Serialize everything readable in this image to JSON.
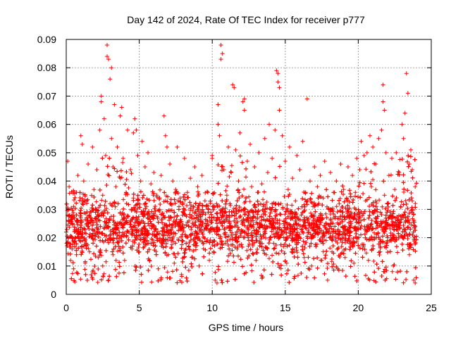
{
  "chart_data": {
    "type": "scatter",
    "title": "Day 142 of 2024, Rate Of TEC Index for receiver p777",
    "xlabel": "GPS time / hours",
    "ylabel": "ROTI / TECUs",
    "xlim": [
      0,
      25
    ],
    "ylim": [
      0,
      0.09
    ],
    "x_ticks": [
      0,
      5,
      10,
      15,
      20,
      25
    ],
    "x_tick_labels": [
      "0",
      "5",
      "10",
      "15",
      "20",
      "25"
    ],
    "y_ticks": [
      0,
      0.01,
      0.02,
      0.03,
      0.04,
      0.05,
      0.06,
      0.07,
      0.08,
      0.09
    ],
    "y_tick_labels": [
      "0",
      "0.01",
      "0.02",
      "0.03",
      "0.04",
      "0.05",
      "0.06",
      "0.07",
      "0.08",
      "0.09"
    ],
    "grid": true,
    "marker": "+",
    "series": [
      {
        "name": "ROTI",
        "color": "#ff0000",
        "points": [
          [
            0.0,
            0.022
          ],
          [
            0.1,
            0.028
          ],
          [
            0.1,
            0.047
          ],
          [
            0.2,
            0.018
          ],
          [
            0.2,
            0.038
          ],
          [
            0.3,
            0.012
          ],
          [
            0.3,
            0.025
          ],
          [
            0.4,
            0.016
          ],
          [
            0.5,
            0.031
          ],
          [
            0.5,
            0.009
          ],
          [
            0.6,
            0.02
          ],
          [
            0.7,
            0.036
          ],
          [
            0.7,
            0.014
          ],
          [
            0.8,
            0.042
          ],
          [
            0.9,
            0.019
          ],
          [
            1.0,
            0.056
          ],
          [
            1.0,
            0.027
          ],
          [
            1.1,
            0.053
          ],
          [
            1.2,
            0.017
          ],
          [
            1.2,
            0.04
          ],
          [
            1.3,
            0.011
          ],
          [
            1.4,
            0.033
          ],
          [
            1.5,
            0.024
          ],
          [
            1.5,
            0.046
          ],
          [
            1.6,
            0.015
          ],
          [
            1.7,
            0.029
          ],
          [
            1.8,
            0.052
          ],
          [
            1.8,
            0.008
          ],
          [
            1.9,
            0.037
          ],
          [
            2.0,
            0.021
          ],
          [
            2.1,
            0.044
          ],
          [
            2.2,
            0.013
          ],
          [
            2.3,
            0.058
          ],
          [
            2.3,
            0.026
          ],
          [
            2.4,
            0.07
          ],
          [
            2.4,
            0.068
          ],
          [
            2.5,
            0.035
          ],
          [
            2.5,
            0.01
          ],
          [
            2.6,
            0.062
          ],
          [
            2.7,
            0.049
          ],
          [
            2.7,
            0.019
          ],
          [
            2.8,
            0.084
          ],
          [
            2.8,
            0.088
          ],
          [
            2.9,
            0.083
          ],
          [
            2.9,
            0.005
          ],
          [
            3.0,
            0.076
          ],
          [
            3.0,
            0.032
          ],
          [
            3.1,
            0.08
          ],
          [
            3.1,
            0.055
          ],
          [
            3.2,
            0.045
          ],
          [
            3.2,
            0.014
          ],
          [
            3.3,
            0.067
          ],
          [
            3.4,
            0.038
          ],
          [
            3.4,
            0.023
          ],
          [
            3.5,
            0.052
          ],
          [
            3.6,
            0.017
          ],
          [
            3.7,
            0.063
          ],
          [
            3.7,
            0.041
          ],
          [
            3.8,
            0.066
          ],
          [
            3.8,
            0.028
          ],
          [
            3.9,
            0.048
          ],
          [
            4.0,
            0.012
          ],
          [
            4.1,
            0.036
          ],
          [
            4.2,
            0.058
          ],
          [
            4.3,
            0.022
          ],
          [
            4.4,
            0.044
          ],
          [
            4.5,
            0.016
          ],
          [
            4.6,
            0.057
          ],
          [
            4.6,
            0.034
          ],
          [
            4.7,
            0.062
          ],
          [
            4.8,
            0.058
          ],
          [
            4.8,
            0.026
          ],
          [
            4.9,
            0.049
          ],
          [
            5.0,
            0.015
          ],
          [
            5.1,
            0.04
          ],
          [
            5.2,
            0.054
          ],
          [
            5.3,
            0.02
          ],
          [
            5.4,
            0.045
          ],
          [
            5.5,
            0.031
          ],
          [
            5.6,
            0.05
          ],
          [
            5.7,
            0.012
          ],
          [
            5.8,
            0.039
          ],
          [
            5.9,
            0.024
          ],
          [
            6.0,
            0.043
          ],
          [
            6.1,
            0.017
          ],
          [
            6.2,
            0.035
          ],
          [
            6.3,
            0.009
          ],
          [
            6.4,
            0.03
          ],
          [
            6.5,
            0.042
          ],
          [
            6.6,
            0.021
          ],
          [
            6.7,
            0.063
          ],
          [
            6.8,
            0.056
          ],
          [
            6.8,
            0.033
          ],
          [
            6.9,
            0.052
          ],
          [
            7.0,
            0.014
          ],
          [
            7.1,
            0.046
          ],
          [
            7.2,
            0.027
          ],
          [
            7.3,
            0.04
          ],
          [
            7.4,
            0.011
          ],
          [
            7.5,
            0.037
          ],
          [
            7.6,
            0.052
          ],
          [
            7.7,
            0.019
          ],
          [
            7.8,
            0.034
          ],
          [
            7.9,
            0.007
          ],
          [
            8.0,
            0.029
          ],
          [
            8.1,
            0.048
          ],
          [
            8.2,
            0.016
          ],
          [
            8.3,
            0.036
          ],
          [
            8.4,
            0.024
          ],
          [
            8.5,
            0.041
          ],
          [
            8.6,
            0.013
          ],
          [
            8.7,
            0.031
          ],
          [
            8.8,
            0.045
          ],
          [
            8.9,
            0.02
          ],
          [
            9.0,
            0.038
          ],
          [
            9.1,
            0.01
          ],
          [
            9.2,
            0.027
          ],
          [
            9.3,
            0.042
          ],
          [
            9.4,
            0.018
          ],
          [
            9.5,
            0.033
          ],
          [
            9.6,
            0.023
          ],
          [
            9.7,
            0.036
          ],
          [
            9.8,
            0.012
          ],
          [
            9.9,
            0.029
          ],
          [
            10.0,
            0.049
          ],
          [
            10.0,
            0.048
          ],
          [
            10.1,
            0.015
          ],
          [
            10.2,
            0.005
          ],
          [
            10.3,
            0.032
          ],
          [
            10.4,
            0.06
          ],
          [
            10.4,
            0.067
          ],
          [
            10.5,
            0.056
          ],
          [
            10.6,
            0.088
          ],
          [
            10.6,
            0.083
          ],
          [
            10.7,
            0.085
          ],
          [
            10.7,
            0.03
          ],
          [
            10.8,
            0.044
          ],
          [
            10.9,
            0.018
          ],
          [
            11.0,
            0.035
          ],
          [
            11.1,
            0.052
          ],
          [
            11.2,
            0.024
          ],
          [
            11.3,
            0.043
          ],
          [
            11.4,
            0.074
          ],
          [
            11.5,
            0.073
          ],
          [
            11.5,
            0.029
          ],
          [
            11.6,
            0.051
          ],
          [
            11.7,
            0.016
          ],
          [
            11.8,
            0.04
          ],
          [
            11.9,
            0.057
          ],
          [
            12.0,
            0.022
          ],
          [
            12.1,
            0.068
          ],
          [
            12.2,
            0.069
          ],
          [
            12.2,
            0.065
          ],
          [
            12.3,
            0.034
          ],
          [
            12.4,
            0.047
          ],
          [
            12.5,
            0.019
          ],
          [
            12.6,
            0.053
          ],
          [
            12.7,
            0.038
          ],
          [
            12.8,
            0.026
          ],
          [
            12.9,
            0.045
          ],
          [
            13.0,
            0.012
          ],
          [
            13.1,
            0.036
          ],
          [
            13.2,
            0.05
          ],
          [
            13.3,
            0.021
          ],
          [
            13.4,
            0.039
          ],
          [
            13.5,
            0.031
          ],
          [
            13.6,
            0.055
          ],
          [
            13.7,
            0.014
          ],
          [
            13.8,
            0.043
          ],
          [
            13.9,
            0.06
          ],
          [
            14.0,
            0.025
          ],
          [
            14.1,
            0.048
          ],
          [
            14.2,
            0.018
          ],
          [
            14.3,
            0.058
          ],
          [
            14.4,
            0.079
          ],
          [
            14.5,
            0.078
          ],
          [
            14.5,
            0.075
          ],
          [
            14.6,
            0.073
          ],
          [
            14.6,
            0.065
          ],
          [
            14.7,
            0.032
          ],
          [
            14.8,
            0.056
          ],
          [
            14.9,
            0.02
          ],
          [
            15.0,
            0.047
          ],
          [
            15.1,
            0.011
          ],
          [
            15.2,
            0.037
          ],
          [
            15.3,
            0.052
          ],
          [
            15.4,
            0.024
          ],
          [
            15.5,
            0.041
          ],
          [
            15.6,
            0.015
          ],
          [
            15.7,
            0.033
          ],
          [
            15.8,
            0.049
          ],
          [
            15.9,
            0.019
          ],
          [
            16.0,
            0.044
          ],
          [
            16.1,
            0.028
          ],
          [
            16.2,
            0.054
          ],
          [
            16.3,
            0.013
          ],
          [
            16.4,
            0.036
          ],
          [
            16.5,
            0.069
          ],
          [
            16.6,
            0.022
          ],
          [
            16.7,
            0.04
          ],
          [
            16.8,
            0.01
          ],
          [
            16.9,
            0.031
          ],
          [
            17.0,
            0.045
          ],
          [
            17.1,
            0.017
          ],
          [
            17.2,
            0.038
          ],
          [
            17.3,
            0.026
          ],
          [
            17.4,
            0.042
          ],
          [
            17.5,
            0.012
          ],
          [
            17.6,
            0.034
          ],
          [
            17.7,
            0.047
          ],
          [
            17.8,
            0.019
          ],
          [
            17.9,
            0.005
          ],
          [
            18.0,
            0.03
          ],
          [
            18.1,
            0.043
          ],
          [
            18.2,
            0.015
          ],
          [
            18.3,
            0.036
          ],
          [
            18.4,
            0.024
          ],
          [
            18.5,
            0.04
          ],
          [
            18.6,
            0.009
          ],
          [
            18.7,
            0.032
          ],
          [
            18.8,
            0.046
          ],
          [
            18.9,
            0.021
          ],
          [
            19.0,
            0.037
          ],
          [
            19.1,
            0.013
          ],
          [
            19.2,
            0.034
          ],
          [
            19.3,
            0.045
          ],
          [
            19.4,
            0.018
          ],
          [
            19.5,
            0.029
          ],
          [
            19.6,
            0.042
          ],
          [
            19.7,
            0.011
          ],
          [
            19.8,
            0.036
          ],
          [
            19.9,
            0.048
          ],
          [
            20.0,
            0.023
          ],
          [
            20.1,
            0.044
          ],
          [
            20.2,
            0.054
          ],
          [
            20.3,
            0.016
          ],
          [
            20.4,
            0.049
          ],
          [
            20.5,
            0.033
          ],
          [
            20.6,
            0.05
          ],
          [
            20.7,
            0.012
          ],
          [
            20.8,
            0.056
          ],
          [
            20.9,
            0.038
          ],
          [
            21.0,
            0.052
          ],
          [
            21.1,
            0.02
          ],
          [
            21.2,
            0.046
          ],
          [
            21.3,
            0.03
          ],
          [
            21.4,
            0.055
          ],
          [
            21.5,
            0.015
          ],
          [
            21.6,
            0.058
          ],
          [
            21.7,
            0.074
          ],
          [
            21.7,
            0.068
          ],
          [
            21.8,
            0.065
          ],
          [
            21.8,
            0.035
          ],
          [
            21.9,
            0.05
          ],
          [
            22.0,
            0.019
          ],
          [
            22.1,
            0.042
          ],
          [
            22.2,
            0.028
          ],
          [
            22.3,
            0.048
          ],
          [
            22.4,
            0.01
          ],
          [
            22.5,
            0.037
          ],
          [
            22.6,
            0.05
          ],
          [
            22.7,
            0.024
          ],
          [
            22.8,
            0.043
          ],
          [
            22.9,
            0.031
          ],
          [
            23.0,
            0.06
          ],
          [
            23.1,
            0.055
          ],
          [
            23.2,
            0.064
          ],
          [
            23.2,
            0.022
          ],
          [
            23.3,
            0.078
          ],
          [
            23.4,
            0.071
          ],
          [
            23.5,
            0.046
          ],
          [
            23.5,
            0.014
          ],
          [
            23.6,
            0.051
          ],
          [
            23.7,
            0.033
          ],
          [
            23.7,
            0.044
          ],
          [
            23.8,
            0.005
          ],
          [
            23.9,
            0.004
          ],
          [
            23.9,
            0.038
          ]
        ]
      }
    ],
    "dense_band": {
      "x_range": [
        0,
        24
      ],
      "median_roti": 0.019,
      "typical_range": [
        0.008,
        0.036
      ],
      "elevated_intervals_hours": [
        [
          2.4,
          4.8
        ],
        [
          10.4,
          12.4
        ],
        [
          14.3,
          14.8
        ],
        [
          20.0,
          24.0
        ]
      ]
    }
  }
}
